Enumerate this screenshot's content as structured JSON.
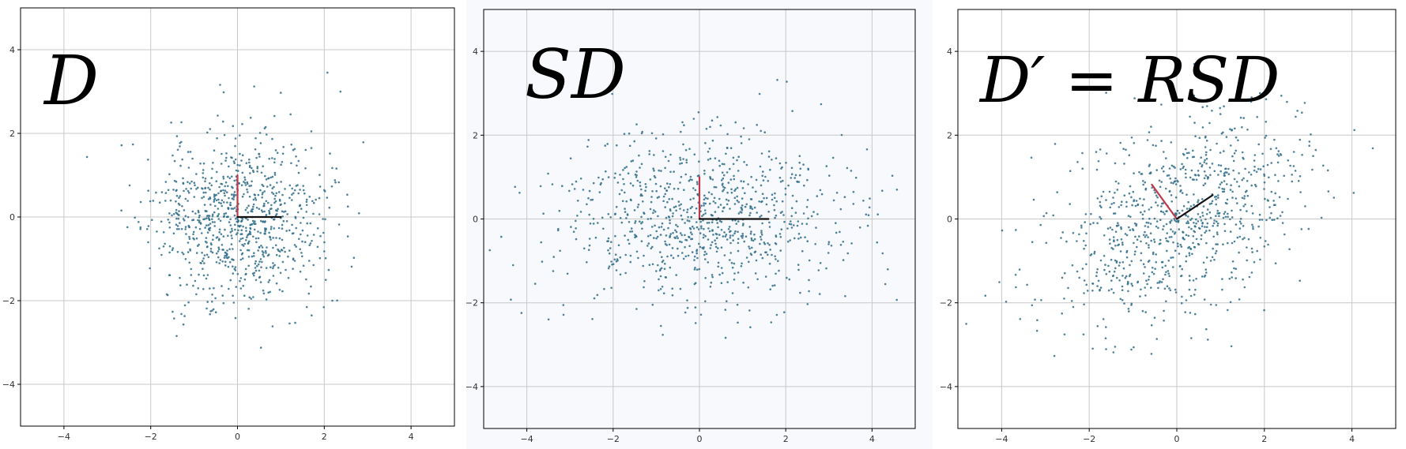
{
  "colors": {
    "point": "#2f6d8a",
    "grid": "#c8c8c8",
    "axes": "#000000",
    "red_vector": "#c0394b",
    "black_vector": "#111111"
  },
  "chart_data": [
    {
      "type": "scatter",
      "title": "D",
      "xlim": [
        -5,
        5
      ],
      "ylim": [
        -5,
        5
      ],
      "xticks": [
        -4,
        -2,
        0,
        2,
        4
      ],
      "yticks": [
        4,
        2,
        0,
        -2,
        -4
      ],
      "grid": true,
      "series": [
        {
          "distribution": "normal",
          "n": 900,
          "mean": [
            0,
            0
          ],
          "std": [
            1,
            1
          ],
          "rotation_deg": 0,
          "seed": 11
        }
      ],
      "vectors": [
        {
          "color": "red",
          "x": [
            0,
            0
          ],
          "y": [
            0,
            1
          ]
        },
        {
          "color": "black",
          "x": [
            0,
            1
          ],
          "y": [
            0,
            0
          ]
        }
      ]
    },
    {
      "type": "scatter",
      "title": "SD",
      "xlim": [
        -5,
        5
      ],
      "ylim": [
        -5,
        5
      ],
      "xticks": [
        -4,
        -2,
        0,
        2,
        4
      ],
      "yticks": [
        4,
        2,
        0,
        -2,
        -4
      ],
      "grid": true,
      "series": [
        {
          "distribution": "normal",
          "n": 900,
          "mean": [
            0,
            0
          ],
          "std": [
            1.6,
            1
          ],
          "rotation_deg": 0,
          "seed": 23
        }
      ],
      "vectors": [
        {
          "color": "red",
          "x": [
            0,
            0
          ],
          "y": [
            0,
            1
          ]
        },
        {
          "color": "black",
          "x": [
            0,
            1.6
          ],
          "y": [
            0,
            0
          ]
        }
      ]
    },
    {
      "type": "scatter",
      "title": "D′ = RSD",
      "xlim": [
        -5,
        5
      ],
      "ylim": [
        -5,
        5
      ],
      "xticks": [
        -4,
        -2,
        0,
        2,
        4
      ],
      "yticks": [
        4,
        2,
        0,
        -2,
        -4
      ],
      "grid": true,
      "series": [
        {
          "distribution": "normal",
          "n": 900,
          "mean": [
            0,
            0
          ],
          "std": [
            1.6,
            1
          ],
          "rotation_deg": 35,
          "seed": 37
        }
      ],
      "vectors": [
        {
          "color": "red",
          "x": [
            0,
            -0.57
          ],
          "y": [
            0,
            0.82
          ]
        },
        {
          "color": "black",
          "x": [
            0,
            0.82
          ],
          "y": [
            0,
            0.57
          ]
        }
      ]
    }
  ]
}
